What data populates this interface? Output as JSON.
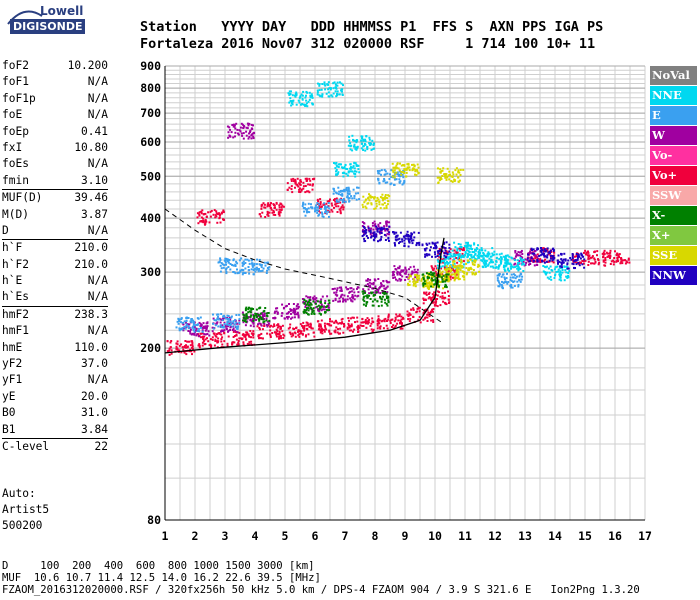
{
  "logo": {
    "line1": "Lowell",
    "line2": "DIGISONDE"
  },
  "header": {
    "line1": "Station   YYYY DAY   DDD HHMMSS P1  FFS S  AXN PPS IGA PS",
    "line2": "Fortaleza 2016 Nov07 312 020000 RSF     1 714 100 10+ 11"
  },
  "params": [
    [
      {
        "name": "foF2",
        "value": "10.200"
      },
      {
        "name": "foF1",
        "value": "N/A"
      },
      {
        "name": "foF1p",
        "value": "N/A"
      },
      {
        "name": "foE",
        "value": "N/A"
      },
      {
        "name": "foEp",
        "value": "0.41"
      },
      {
        "name": "fxI",
        "value": "10.80"
      },
      {
        "name": "foEs",
        "value": "N/A"
      },
      {
        "name": "fmin",
        "value": "3.10"
      }
    ],
    [
      {
        "name": "MUF(D)",
        "value": "39.46"
      },
      {
        "name": "M(D)",
        "value": "3.87"
      },
      {
        "name": "D",
        "value": "N/A"
      }
    ],
    [
      {
        "name": "h`F",
        "value": "210.0"
      },
      {
        "name": "h`F2",
        "value": "210.0"
      },
      {
        "name": "h`E",
        "value": "N/A"
      },
      {
        "name": "h`Es",
        "value": "N/A"
      }
    ],
    [
      {
        "name": "hmF2",
        "value": "238.3"
      },
      {
        "name": "hmF1",
        "value": "N/A"
      },
      {
        "name": "hmE",
        "value": "110.0"
      },
      {
        "name": "yF2",
        "value": "37.0"
      },
      {
        "name": "yF1",
        "value": "N/A"
      },
      {
        "name": "yE",
        "value": "20.0"
      },
      {
        "name": "B0",
        "value": "31.0"
      },
      {
        "name": "B1",
        "value": "3.84"
      }
    ],
    [
      {
        "name": "C-level",
        "value": "22"
      }
    ]
  ],
  "auto": {
    "line1": "Auto:",
    "line2": "Artist5",
    "line3": "500200"
  },
  "footer": {
    "line1": "D     100  200  400  600  800 1000 1500 3000 [km]",
    "line2": "MUF  10.6 10.7 11.4 12.5 14.0 16.2 22.6 39.5 [MHz]",
    "line3": "FZAOM_2016312020000.RSF / 320fx256h 50 kHz 5.0 km / DPS-4 FZAOM 904 / 3.9 S 321.6 E   Ion2Png 1.3.20"
  },
  "legend": [
    {
      "label": "NoVal",
      "color": "#808080"
    },
    {
      "label": "NNE",
      "color": "#00d8f0"
    },
    {
      "label": "E",
      "color": "#3aa0f0"
    },
    {
      "label": "W",
      "color": "#a000a0"
    },
    {
      "label": "Vo-",
      "color": "#ff30a0"
    },
    {
      "label": "Vo+",
      "color": "#f0003c"
    },
    {
      "label": "SSW",
      "color": "#f8a8a8"
    },
    {
      "label": "X-",
      "color": "#008000"
    },
    {
      "label": "X+",
      "color": "#80c840"
    },
    {
      "label": "SSE",
      "color": "#d8d800"
    },
    {
      "label": "NNW",
      "color": "#2000c0"
    }
  ],
  "chart_data": {
    "type": "scatter",
    "xlabel": "",
    "ylabel": "",
    "xlim": [
      1,
      17
    ],
    "ylim_log": [
      80,
      900
    ],
    "x_ticks": [
      1,
      2,
      3,
      4,
      5,
      6,
      7,
      8,
      9,
      10,
      11,
      12,
      13,
      14,
      15,
      16,
      17
    ],
    "y_ticks": [
      80,
      200,
      300,
      400,
      500,
      600,
      700,
      800,
      900
    ],
    "y_scale": "log",
    "grid": true,
    "series": [
      {
        "color": "#f0003c",
        "points": [
          [
            1.5,
            202
          ],
          [
            2.5,
            210
          ],
          [
            3.5,
            212
          ],
          [
            4.5,
            220
          ],
          [
            5.5,
            222
          ],
          [
            6.5,
            226
          ],
          [
            7.5,
            228
          ],
          [
            8.5,
            232
          ],
          [
            9.5,
            240
          ],
          [
            10.0,
            262
          ],
          [
            10.3,
            300
          ],
          [
            10.5,
            330
          ],
          [
            2.5,
            404
          ],
          [
            4.5,
            420
          ],
          [
            6.5,
            430
          ],
          [
            5.5,
            480
          ],
          [
            13.5,
            330
          ],
          [
            15.0,
            325
          ],
          [
            16.0,
            325
          ]
        ]
      },
      {
        "color": "#a000a0",
        "points": [
          [
            2.0,
            222
          ],
          [
            3.0,
            228
          ],
          [
            4.0,
            235
          ],
          [
            5.0,
            245
          ],
          [
            6.0,
            255
          ],
          [
            7.0,
            268
          ],
          [
            8.0,
            280
          ],
          [
            9.0,
            300
          ],
          [
            3.5,
            640
          ],
          [
            8.0,
            380
          ],
          [
            13.0,
            325
          ]
        ]
      },
      {
        "color": "#3aa0f0",
        "points": [
          [
            1.8,
            228
          ],
          [
            3.0,
            232
          ],
          [
            4.0,
            310
          ],
          [
            3.2,
            312
          ],
          [
            12.5,
            288
          ],
          [
            6.0,
            420
          ],
          [
            7.0,
            455
          ],
          [
            8.5,
            500
          ]
        ]
      },
      {
        "color": "#00d8f0",
        "points": [
          [
            10.5,
            320
          ],
          [
            11.0,
            340
          ],
          [
            11.5,
            330
          ],
          [
            12.0,
            320
          ],
          [
            12.5,
            315
          ],
          [
            14.0,
            300
          ],
          [
            7.0,
            520
          ],
          [
            7.5,
            600
          ],
          [
            6.5,
            800
          ],
          [
            5.5,
            760
          ]
        ]
      },
      {
        "color": "#d8d800",
        "points": [
          [
            9.5,
            290
          ],
          [
            10.0,
            285
          ],
          [
            10.5,
            300
          ],
          [
            11.0,
            310
          ],
          [
            10.5,
            505
          ],
          [
            9.0,
            520
          ],
          [
            8.0,
            440
          ]
        ]
      },
      {
        "color": "#008000",
        "points": [
          [
            4.0,
            240
          ],
          [
            6.0,
            250
          ],
          [
            8.0,
            262
          ],
          [
            10.0,
            290
          ]
        ]
      },
      {
        "color": "#2000c0",
        "points": [
          [
            8.0,
            370
          ],
          [
            9.0,
            360
          ],
          [
            10.0,
            340
          ],
          [
            13.5,
            330
          ],
          [
            14.5,
            320
          ]
        ]
      }
    ],
    "profile_dashed": [
      [
        1.0,
        420
      ],
      [
        2.0,
        375
      ],
      [
        3.0,
        340
      ],
      [
        4.0,
        320
      ],
      [
        5.0,
        305
      ],
      [
        6.0,
        295
      ],
      [
        7.0,
        285
      ],
      [
        8.0,
        275
      ],
      [
        9.0,
        262
      ],
      [
        9.8,
        240
      ],
      [
        10.2,
        230
      ]
    ],
    "profile_solid": [
      [
        1.0,
        195
      ],
      [
        3.0,
        201
      ],
      [
        5.0,
        206
      ],
      [
        7.0,
        212
      ],
      [
        8.5,
        220
      ],
      [
        9.5,
        232
      ],
      [
        10.0,
        262
      ],
      [
        10.2,
        330
      ],
      [
        10.3,
        360
      ]
    ]
  }
}
